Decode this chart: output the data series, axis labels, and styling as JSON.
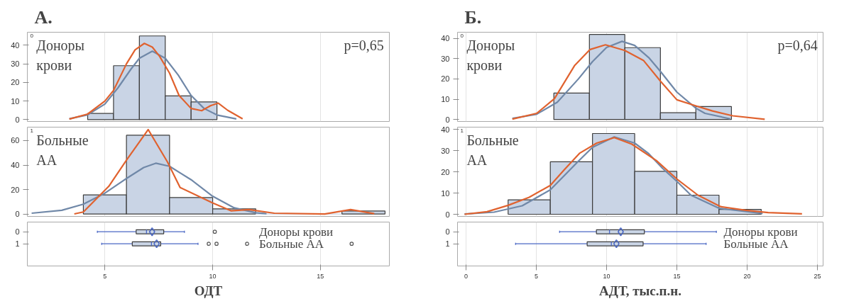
{
  "chart_data": [
    {
      "type": "histogram",
      "title": "А.",
      "bins": [
        4.2,
        5.4,
        6.6,
        7.8,
        9.0,
        10.2
      ],
      "values": [
        3.3,
        29,
        45,
        12.8,
        9.5
      ],
      "color": "#c9d4e5",
      "xlim": [
        1.4,
        18.2
      ],
      "xticks": [
        5,
        10,
        15
      ],
      "ylim": [
        -1,
        47
      ],
      "yticks": [
        0,
        10,
        20,
        30,
        40
      ],
      "grid": "x",
      "tick_labels": "y",
      "annotations": [
        "0",
        "Доноры крови",
        "p=0,65"
      ],
      "series": [
        {
          "type": "line",
          "color": "#7088a8",
          "x": [
            3.35,
            4.2,
            5,
            5.6,
            6.2,
            6.6,
            7.2,
            7.8,
            8.4,
            9,
            9.6,
            10.2,
            11.1
          ],
          "values": [
            0.5,
            2.6,
            8.4,
            17,
            27,
            33,
            36.8,
            33,
            24,
            13,
            6,
            2.5,
            0.4
          ]
        },
        {
          "type": "line",
          "color": "#e0622f",
          "x": [
            3.35,
            4.2,
            5,
            5.4,
            6,
            6.4,
            6.83,
            7.2,
            7.54,
            8,
            8.44,
            9,
            9.49,
            9.9,
            10.26,
            10.7,
            11.39
          ],
          "values": [
            0.3,
            3,
            10,
            15.7,
            30,
            37.5,
            41,
            39,
            34,
            25,
            13,
            6,
            4.8,
            7.5,
            8.9,
            5,
            0.4
          ]
        }
      ]
    },
    {
      "type": "histogram",
      "bins": [
        4,
        6,
        8,
        10,
        12,
        14,
        16,
        18
      ],
      "values": [
        15.6,
        64.4,
        13.4,
        4.2,
        0,
        0,
        2.4
      ],
      "color": "#c9d4e5",
      "xlim": [
        1.4,
        18.2
      ],
      "xticks": [
        5,
        10,
        15
      ],
      "ylim": [
        -2,
        71
      ],
      "yticks": [
        0,
        20,
        40,
        60
      ],
      "grid": "x",
      "tick_labels": "y",
      "annotations": [
        "1",
        "Больные АА"
      ],
      "series": [
        {
          "type": "line",
          "color": "#7088a8",
          "x": [
            1.6,
            3,
            4,
            5,
            6,
            6.8,
            7.36,
            8,
            9,
            10,
            11,
            12,
            12.5
          ],
          "values": [
            0.6,
            3,
            8,
            17,
            29,
            38,
            41.5,
            39,
            28,
            14.5,
            5,
            1,
            0.3
          ]
        },
        {
          "type": "line",
          "color": "#e0622f",
          "x": [
            3.58,
            4,
            5.18,
            6,
            7.01,
            7.9,
            8.49,
            10,
            10.85,
            11.68,
            12.86,
            15.2,
            16.4,
            17.5
          ],
          "values": [
            0,
            1.6,
            22.6,
            44,
            69,
            42.6,
            21.6,
            9,
            2.6,
            3.6,
            0.6,
            0,
            3.6,
            0.2
          ]
        }
      ]
    },
    {
      "type": "box",
      "orientation": "horizontal",
      "categories": [
        "0",
        "1"
      ],
      "color": "#c9d4e5",
      "xlim": [
        1.4,
        18.2
      ],
      "xticks": [
        5,
        10,
        15
      ],
      "grid": "x",
      "xlabel": "ОДТ",
      "annotations": [
        "Доноры крови",
        "Больные АА"
      ],
      "boxes": [
        {
          "low": 4.65,
          "q1": 6.45,
          "median": 6.93,
          "q3": 7.73,
          "high": 8.69,
          "mean": 7.19,
          "outliers": [
            10.1
          ]
        },
        {
          "low": 4.85,
          "q1": 6.27,
          "median": 7.16,
          "q3": 7.59,
          "high": 9.32,
          "mean": 7.4,
          "outliers": [
            9.82,
            10.18,
            11.6,
            16.45
          ]
        }
      ]
    },
    {
      "type": "histogram",
      "title": "Б.",
      "bins": [
        6.25,
        8.78,
        11.3,
        13.83,
        16.35,
        18.88
      ],
      "values": [
        13,
        41.9,
        35.4,
        3.3,
        6.4
      ],
      "color": "#c9d4e5",
      "xlim": [
        -0.6,
        25.4
      ],
      "xticks": [
        0,
        5,
        10,
        15,
        20,
        25
      ],
      "ylim": [
        -1,
        43
      ],
      "yticks": [
        0,
        10,
        20,
        30,
        40
      ],
      "grid": "x",
      "tick_labels": "y",
      "annotations": [
        "0",
        "Доноры крови",
        "p=0,64"
      ],
      "series": [
        {
          "type": "line",
          "color": "#7088a8",
          "x": [
            3.3,
            5,
            6.5,
            8,
            9,
            10,
            11.1,
            12,
            13,
            13.84,
            15,
            16.36,
            17,
            18.8
          ],
          "values": [
            0.5,
            2.5,
            8.5,
            20,
            28.5,
            35.5,
            38.5,
            36.5,
            30.5,
            23.6,
            13.5,
            5.5,
            3,
            0.3
          ]
        },
        {
          "type": "line",
          "color": "#e0622f",
          "x": [
            3.3,
            5.03,
            6.3,
            7.74,
            8.83,
            9.92,
            11.3,
            12.64,
            13.84,
            15,
            16.36,
            17.53,
            18.98,
            21.25
          ],
          "values": [
            0.2,
            3,
            10.3,
            26.7,
            34.5,
            36.8,
            34,
            29,
            18.8,
            9.7,
            6.7,
            4.2,
            1.8,
            0.1
          ]
        }
      ]
    },
    {
      "type": "histogram",
      "bins": [
        3,
        6,
        9,
        12,
        15,
        18,
        21
      ],
      "values": [
        6.8,
        24.7,
        38,
        20.2,
        9,
        2.3
      ],
      "color": "#c9d4e5",
      "xlim": [
        -0.6,
        25.4
      ],
      "xticks": [
        0,
        5,
        10,
        15,
        20,
        25
      ],
      "ylim": [
        -1,
        41
      ],
      "yticks": [
        0,
        10,
        20,
        30,
        40
      ],
      "grid": "x",
      "tick_labels": "y",
      "annotations": [
        "1",
        "Больные АА"
      ],
      "series": [
        {
          "type": "line",
          "color": "#7088a8",
          "x": [
            -0.1,
            2,
            4,
            6,
            8,
            9,
            10.55,
            12,
            13,
            14,
            15,
            16,
            18,
            21.1
          ],
          "values": [
            0.1,
            1,
            4,
            11.5,
            25,
            31.5,
            36.4,
            33.5,
            28.5,
            21.5,
            15.5,
            9,
            2.8,
            0.4
          ]
        },
        {
          "type": "line",
          "color": "#e0622f",
          "x": [
            -0.1,
            1.5,
            3,
            4.5,
            6,
            7,
            8.1,
            9.3,
            10.55,
            11.8,
            13.54,
            15.09,
            16.5,
            18.11,
            19.9,
            21.5,
            23.9
          ],
          "values": [
            0,
            1.2,
            4.2,
            8,
            13.6,
            21,
            28.8,
            33.5,
            36.1,
            33,
            25.3,
            16.1,
            9,
            3.6,
            1.9,
            0.8,
            0.2
          ]
        }
      ]
    },
    {
      "type": "box",
      "orientation": "horizontal",
      "categories": [
        "0",
        "1"
      ],
      "color": "#c9d4e5",
      "xlim": [
        -0.6,
        25.4
      ],
      "xticks": [
        0,
        5,
        10,
        15,
        20,
        25
      ],
      "grid": "x",
      "xlabel": "АДТ, тыс.п.н.",
      "annotations": [
        "Доноры крови",
        "Больные АА"
      ],
      "boxes": [
        {
          "low": 6.66,
          "q1": 9.28,
          "median": 10.21,
          "q3": 12.69,
          "high": 17.81,
          "mean": 11.01
        },
        {
          "low": 3.53,
          "q1": 8.62,
          "median": 10.34,
          "q3": 12.6,
          "high": 17.08,
          "mean": 10.7
        }
      ]
    }
  ]
}
